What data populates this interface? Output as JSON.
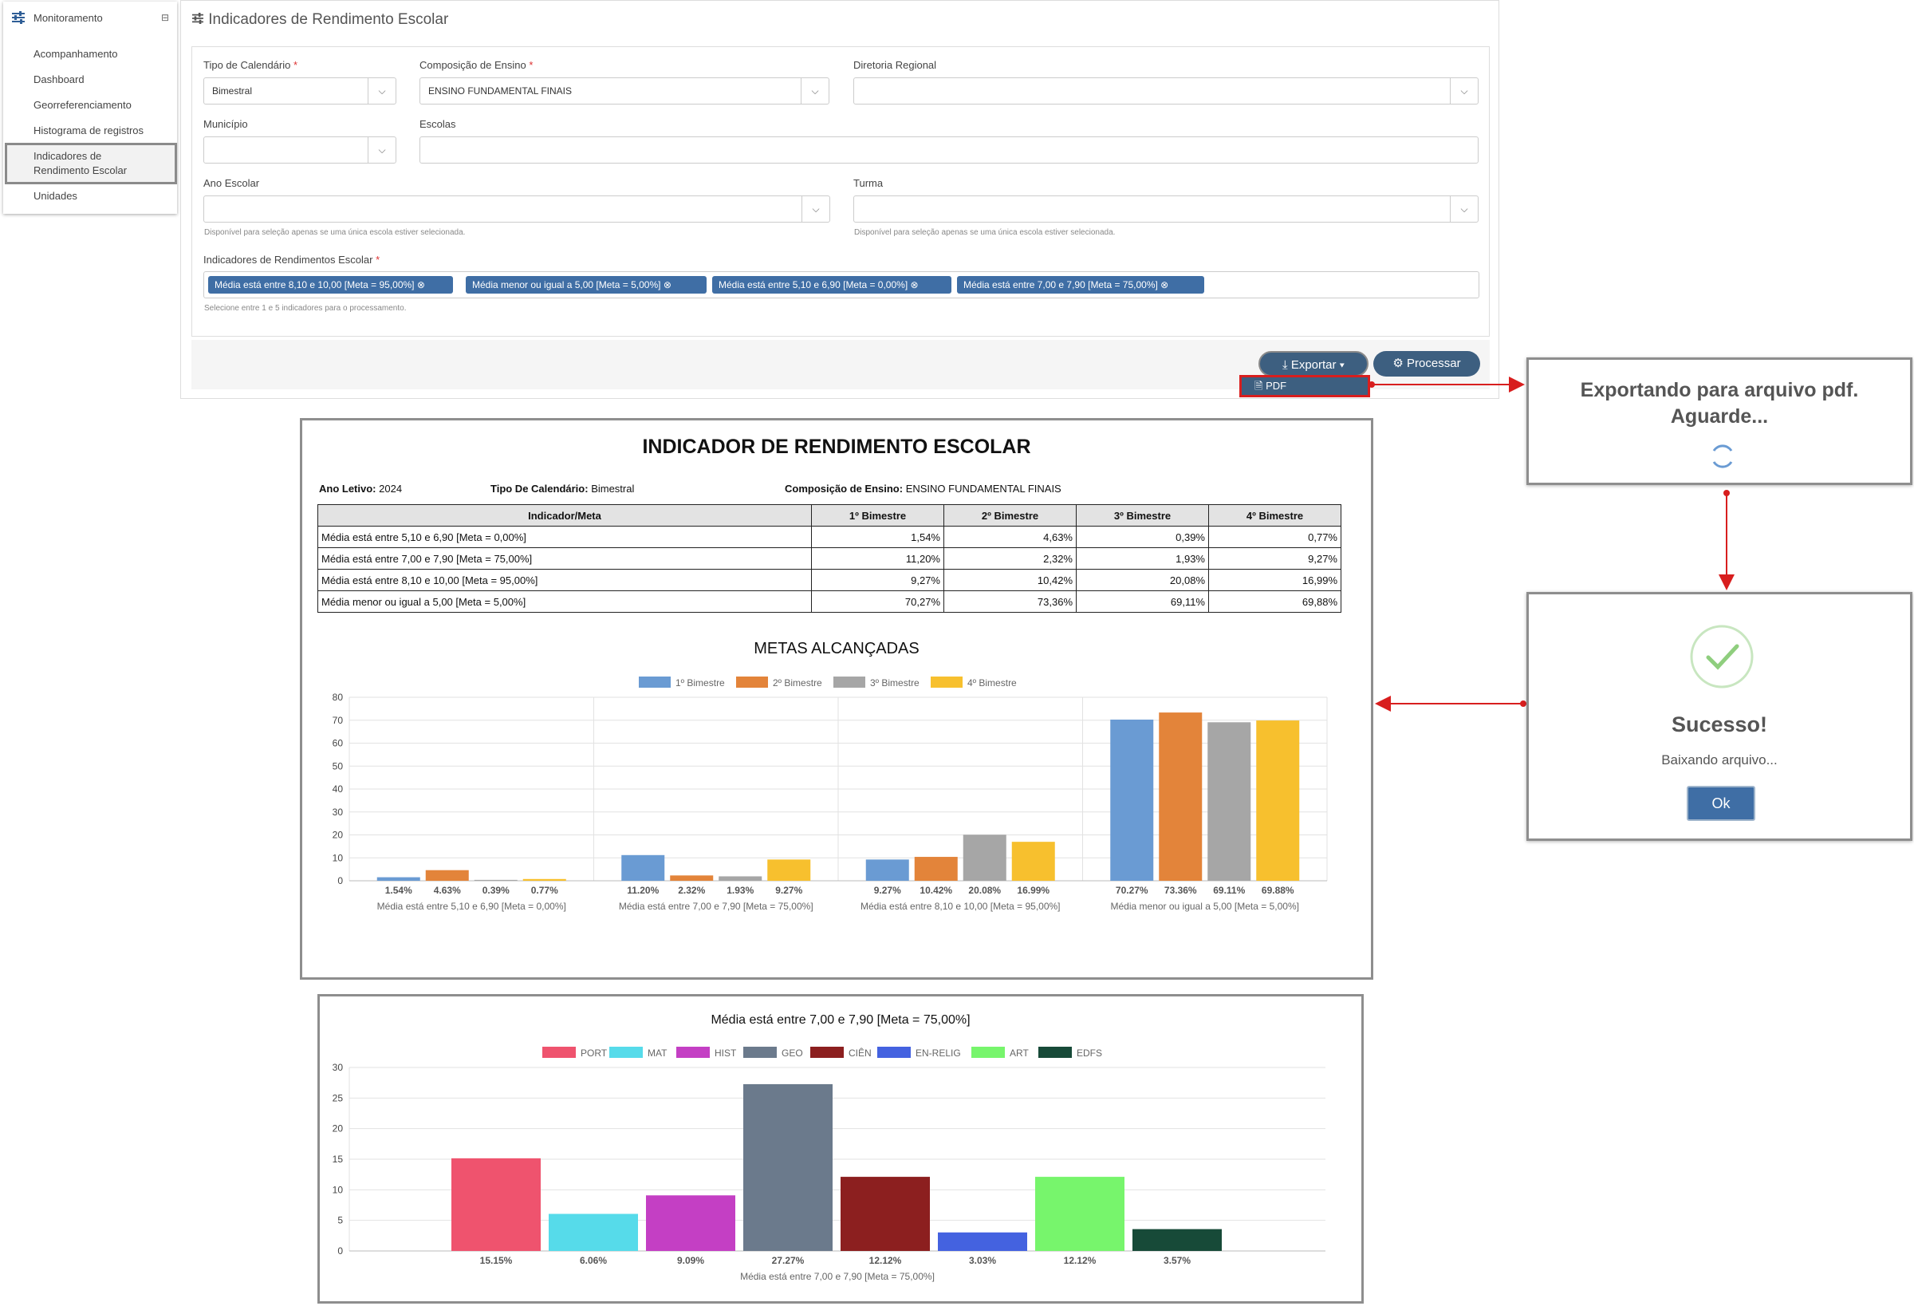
{
  "sidebar": {
    "title": "Monitoramento",
    "items": [
      "Acompanhamento",
      "Dashboard",
      "Georreferenciamento",
      "Histograma de registros",
      "Indicadores de",
      "Rendimento Escolar",
      "Unidades"
    ]
  },
  "panel": {
    "title": "Indicadores de Rendimento Escolar",
    "fields": {
      "tipo_calendario": {
        "label": "Tipo de Calendário",
        "value": "Bimestral"
      },
      "composicao": {
        "label": "Composição de Ensino",
        "value": "ENSINO FUNDAMENTAL FINAIS"
      },
      "diretoria": {
        "label": "Diretoria Regional",
        "value": ""
      },
      "municipio": {
        "label": "Município",
        "value": ""
      },
      "escolas": {
        "label": "Escolas",
        "value": ""
      },
      "ano": {
        "label": "Ano Escolar",
        "value": ""
      },
      "turma": {
        "label": "Turma",
        "value": ""
      },
      "hint_single": "Disponível para seleção apenas se uma única escola estiver selecionada.",
      "indicadores_label": "Indicadores de Rendimentos Escolar",
      "indicadores_hint": "Selecione entre 1 e 5 indicadores para o processamento."
    },
    "tags": [
      "Média está entre 8,10 e 10,00 [Meta = 95,00%]",
      "Média menor ou igual a 5,00 [Meta = 5,00%]",
      "Média está entre 5,10 e 6,90 [Meta = 0,00%]",
      "Média está entre 7,00 e 7,90 [Meta = 75,00%]"
    ],
    "export_label": "Exportar",
    "process_label": "Processar",
    "pdf_label": "PDF"
  },
  "dialog_export": {
    "line1": "Exportando para arquivo pdf.",
    "line2": "Aguarde..."
  },
  "dialog_success": {
    "title": "Sucesso!",
    "subtitle": "Baixando arquivo...",
    "ok": "Ok"
  },
  "report": {
    "title": "INDICADOR DE RENDIMENTO ESCOLAR",
    "ano_label": "Ano Letivo:",
    "ano_value": "2024",
    "tipo_label": "Tipo De Calendário:",
    "tipo_value": "Bimestral",
    "comp_label": "Composição de Ensino:",
    "comp_value": "ENSINO FUNDAMENTAL FINAIS",
    "table_headers": [
      "Indicador/Meta",
      "1º Bimestre",
      "2º Bimestre",
      "3º Bimestre",
      "4º Bimestre"
    ],
    "rows": [
      [
        "Média está entre 5,10 e 6,90 [Meta = 0,00%]",
        "1,54%",
        "4,63%",
        "0,39%",
        "0,77%"
      ],
      [
        "Média está entre 7,00 e 7,90 [Meta = 75,00%]",
        "11,20%",
        "2,32%",
        "1,93%",
        "9,27%"
      ],
      [
        "Média está entre 8,10 e 10,00 [Meta = 95,00%]",
        "9,27%",
        "10,42%",
        "20,08%",
        "16,99%"
      ],
      [
        "Média menor ou igual a 5,00 [Meta = 5,00%]",
        "70,27%",
        "73,36%",
        "69,11%",
        "69,88%"
      ]
    ]
  },
  "chart_data": [
    {
      "type": "bar",
      "title": "METAS ALCANÇADAS",
      "categories": [
        "Média está entre 5,10 e 6,90 [Meta = 0,00%]",
        "Média está entre 7,00 e 7,90 [Meta = 75,00%]",
        "Média está entre 8,10 e 10,00 [Meta = 95,00%]",
        "Média menor ou igual a 5,00 [Meta = 5,00%]"
      ],
      "series": [
        {
          "name": "1º Bimestre",
          "color": "#6a9bd3",
          "values": [
            1.54,
            11.2,
            9.27,
            70.27
          ],
          "labels": [
            "1.54%",
            "11.20%",
            "9.27%",
            "70.27%"
          ]
        },
        {
          "name": "2º Bimestre",
          "color": "#e3843a",
          "values": [
            4.63,
            2.32,
            10.42,
            73.36
          ],
          "labels": [
            "4.63%",
            "2.32%",
            "10.42%",
            "73.36%"
          ]
        },
        {
          "name": "3º Bimestre",
          "color": "#a6a6a6",
          "values": [
            0.39,
            1.93,
            20.08,
            69.11
          ],
          "labels": [
            "0.39%",
            "1.93%",
            "20.08%",
            "69.11%"
          ]
        },
        {
          "name": "4º Bimestre",
          "color": "#f7c02e",
          "values": [
            0.77,
            9.27,
            16.99,
            69.88
          ],
          "labels": [
            "0.77%",
            "9.27%",
            "16.99%",
            "69.88%"
          ]
        }
      ],
      "yticks": [
        0,
        10,
        20,
        30,
        40,
        50,
        60,
        70,
        80
      ],
      "ylim": [
        0,
        80
      ],
      "legend": "top"
    },
    {
      "type": "bar",
      "title": "Média está entre 7,00 e 7,90 [Meta = 75,00%]",
      "xlabel": "Média está entre 7,00 e 7,90 [Meta = 75,00%]",
      "categories": [
        "PORT",
        "MAT",
        "HIST",
        "GEO",
        "CIÊN",
        "EN-RELIG",
        "ART",
        "EDFS"
      ],
      "values": [
        15.15,
        6.06,
        9.09,
        27.27,
        12.12,
        3.03,
        12.12,
        3.57
      ],
      "labels": [
        "15.15%",
        "6.06%",
        "9.09%",
        "27.27%",
        "12.12%",
        "3.03%",
        "12.12%",
        "3.57%"
      ],
      "colors": [
        "#ef536e",
        "#56dbea",
        "#c43fc4",
        "#6b7a8c",
        "#8c1f1f",
        "#4462e0",
        "#77f56c",
        "#174a38"
      ],
      "yticks": [
        0,
        5,
        10,
        15,
        20,
        25,
        30
      ],
      "ylim": [
        0,
        30
      ],
      "legend": "top"
    }
  ]
}
